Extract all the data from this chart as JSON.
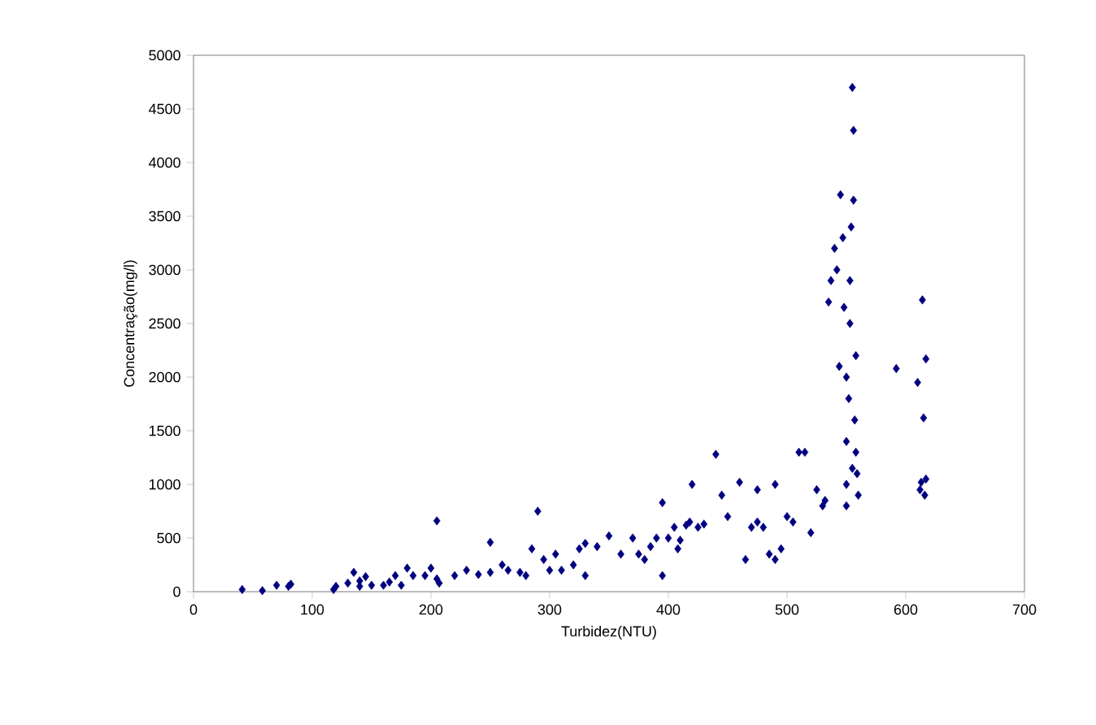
{
  "chart_data": {
    "type": "scatter",
    "xlabel": "Turbidez(NTU)",
    "ylabel": "Concentração(mg/l)",
    "xlim": [
      0,
      700
    ],
    "ylim": [
      0,
      5000
    ],
    "xticks": [
      0,
      100,
      200,
      300,
      400,
      500,
      600,
      700
    ],
    "yticks": [
      0,
      500,
      1000,
      1500,
      2000,
      2500,
      3000,
      3500,
      4000,
      4500,
      5000
    ],
    "grid": false,
    "marker": "diamond",
    "series": [
      {
        "color": "#000080",
        "x": [
          41,
          58,
          70,
          80,
          82,
          118,
          120,
          130,
          135,
          140,
          140,
          145,
          150,
          160,
          165,
          170,
          175,
          180,
          185,
          195,
          200,
          205,
          207,
          205,
          220,
          230,
          240,
          250,
          250,
          260,
          265,
          275,
          280,
          285,
          290,
          295,
          300,
          305,
          310,
          320,
          325,
          330,
          330,
          340,
          350,
          360,
          370,
          375,
          380,
          385,
          390,
          395,
          395,
          400,
          405,
          408,
          410,
          415,
          418,
          420,
          425,
          430,
          440,
          445,
          450,
          460,
          465,
          470,
          475,
          475,
          480,
          485,
          490,
          490,
          495,
          500,
          505,
          510,
          515,
          520,
          525,
          530,
          532,
          535,
          537,
          540,
          542,
          544,
          545,
          547,
          548,
          550,
          550,
          550,
          550,
          552,
          553,
          553,
          554,
          555,
          556,
          556,
          555,
          557,
          558,
          558,
          559,
          560,
          592,
          610,
          612,
          613,
          614,
          615,
          616,
          617,
          617
        ],
        "values": [
          20,
          10,
          60,
          50,
          70,
          20,
          50,
          80,
          180,
          100,
          50,
          140,
          60,
          60,
          90,
          150,
          60,
          220,
          150,
          150,
          220,
          660,
          80,
          120,
          150,
          200,
          160,
          460,
          180,
          250,
          200,
          180,
          150,
          400,
          750,
          300,
          200,
          350,
          200,
          250,
          400,
          150,
          450,
          420,
          520,
          350,
          500,
          350,
          300,
          420,
          500,
          830,
          150,
          500,
          600,
          400,
          480,
          620,
          650,
          1000,
          600,
          630,
          1280,
          900,
          700,
          1020,
          300,
          600,
          650,
          950,
          600,
          350,
          300,
          1000,
          400,
          700,
          650,
          1300,
          1300,
          550,
          950,
          800,
          850,
          2700,
          2900,
          3200,
          3000,
          2100,
          3700,
          3300,
          2650,
          2000,
          1400,
          1000,
          800,
          1800,
          2500,
          2900,
          3400,
          4700,
          4300,
          3650,
          1150,
          1600,
          2200,
          1300,
          1100,
          900,
          2080,
          1950,
          950,
          1020,
          2720,
          1620,
          900,
          2170,
          1050
        ]
      }
    ]
  }
}
